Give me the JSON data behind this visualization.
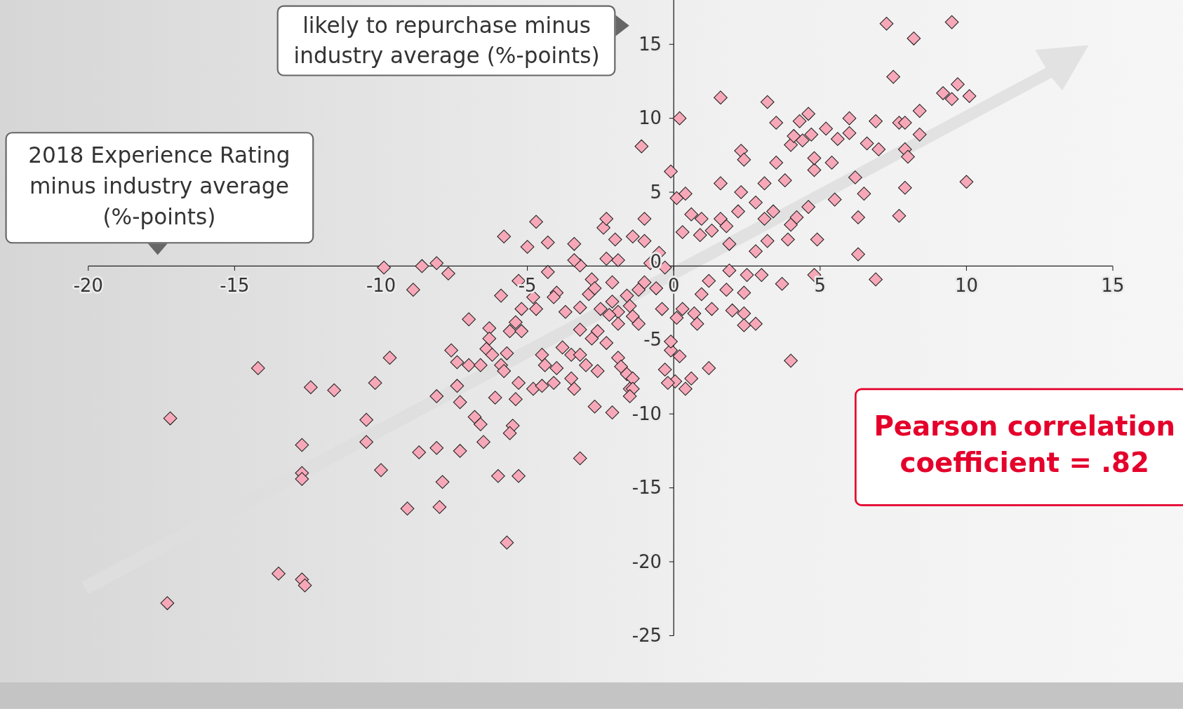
{
  "chart_data": {
    "type": "scatter",
    "xlabel": "2018 Experience Rating minus industry average (%-points)",
    "ylabel": "likely to repurchase minus industry average (%-points)",
    "annotations": [
      "Pearson correlation coefficient = .82"
    ],
    "xlim": [
      -20,
      15
    ],
    "xticks": [
      -20,
      -15,
      -10,
      -5,
      0,
      5,
      10,
      15
    ],
    "ylim": [
      -25,
      18
    ],
    "yticks": [
      -25,
      -20,
      -15,
      -10,
      -5,
      0,
      5,
      10,
      15
    ],
    "grid": false,
    "marker": "diamond",
    "series": [
      {
        "color": "#f7a8b8",
        "x": [
          7.27,
          9.5,
          8.2,
          7.5,
          9.7,
          9.2,
          9.5,
          10.1,
          1.6,
          3.2,
          0.2,
          -1.1,
          3.5,
          4.3,
          4.6,
          5.2,
          6.0,
          6.9,
          7.7,
          8.4,
          7.9,
          5.6,
          6.0,
          6.6,
          7.0,
          7.9,
          8.4,
          8.0,
          7.9,
          10.0,
          7.7,
          6.3,
          6.5,
          6.2,
          5.5,
          5.4,
          4.8,
          4.8,
          4.0,
          4.4,
          4.7,
          4.1,
          3.5,
          3.8,
          3.1,
          2.3,
          2.4,
          2.3,
          1.6,
          -0.1,
          0.4,
          0.1,
          4.6,
          4.0,
          4.2,
          3.4,
          3.1,
          3.2,
          3.9,
          4.9,
          2.8,
          2.2,
          1.6,
          0.95,
          0.6,
          0.3,
          0.9,
          1.3,
          1.8,
          1.9,
          2.8,
          6.3,
          6.9,
          4.8,
          3.7,
          4.0,
          3.0,
          2.5,
          1.9,
          2.4,
          1.8,
          2.0,
          2.4,
          2.4,
          2.8,
          1.2,
          0.95,
          1.3,
          0.7,
          0.8,
          1.2,
          0.6,
          0.4,
          0.2,
          -0.1,
          -0.1,
          -0.3,
          0.05,
          -0.2,
          0.1,
          0.3,
          -0.4,
          -0.6,
          -1.0,
          -1.2,
          -1.6,
          -1.5,
          -1.9,
          -1.4,
          -1.2,
          -1.9,
          -2.2,
          -2.1,
          -2.5,
          -2.6,
          -2.3,
          -2.8,
          -3.2,
          -3.2,
          -2.9,
          -2.8,
          -2.7,
          -2.1,
          -1.9,
          -1.4,
          -1.0,
          -1.0,
          -0.5,
          -0.8,
          -0.3,
          -2.3,
          -2.4,
          -2.3,
          -2.0,
          -3.4,
          -3.2,
          -3.4,
          -4.7,
          -5.0,
          -4.3,
          -5.8,
          -4.3,
          -4.0,
          -4.1,
          -3.7,
          -4.8,
          -5.2,
          -4.7,
          -5.3,
          -5.9,
          -5.4,
          -5.6,
          -5.2,
          -6.3,
          -6.3,
          -7.0,
          -6.4,
          -5.7,
          -6.2,
          -7.6,
          -7.4,
          -7.0,
          -6.6,
          -5.9,
          -5.8,
          -4.5,
          -4.4,
          -4.0,
          -3.8,
          -3.5,
          -3.2,
          -3.0,
          -2.6,
          -3.5,
          -3.4,
          -4.8,
          -4.5,
          -4.1,
          -5.3,
          -6.1,
          -5.4,
          -7.4,
          -7.3,
          -8.1,
          -2.7,
          -2.1,
          -1.9,
          -1.8,
          -1.6,
          -1.4,
          -1.5,
          -1.4,
          -1.5,
          -6.8,
          -6.6,
          -5.5,
          -5.6,
          -6.5,
          -7.3,
          -8.1,
          -8.7,
          -3.2,
          -6.0,
          -5.3,
          -7.9,
          -8.0,
          -9.1,
          -5.7,
          -10.0,
          -10.5,
          -10.5,
          -10.2,
          -9.7,
          -8.9,
          -9.9,
          -8.6,
          -8.1,
          -7.7,
          -11.6,
          -12.4,
          -12.7,
          -12.7,
          -12.7,
          -14.2,
          -17.2,
          -13.5,
          -12.7,
          -12.6,
          -17.3
        ],
        "values": [
          16.4,
          16.5,
          15.4,
          12.8,
          12.3,
          11.7,
          11.3,
          11.5,
          11.4,
          11.1,
          10.0,
          8.1,
          9.7,
          9.8,
          10.3,
          9.3,
          10.0,
          9.8,
          9.7,
          10.5,
          9.7,
          8.6,
          9.0,
          8.3,
          7.9,
          7.9,
          8.9,
          7.4,
          5.3,
          5.7,
          3.4,
          3.3,
          4.9,
          6.0,
          4.5,
          7.0,
          6.5,
          7.3,
          8.2,
          8.5,
          8.9,
          8.8,
          7.0,
          5.8,
          5.6,
          7.8,
          7.2,
          5.0,
          5.6,
          6.4,
          4.9,
          4.6,
          4.0,
          2.8,
          3.3,
          3.7,
          3.2,
          1.7,
          1.8,
          1.8,
          4.3,
          3.7,
          3.2,
          3.2,
          3.5,
          2.3,
          2.1,
          2.4,
          2.7,
          1.5,
          1.0,
          0.8,
          -0.9,
          -0.6,
          -1.2,
          -6.4,
          -0.6,
          -0.6,
          -0.3,
          -1.8,
          -1.6,
          -3.0,
          -3.2,
          -4.0,
          -3.9,
          -1.0,
          -1.9,
          -2.9,
          -3.2,
          -3.9,
          -6.9,
          -7.6,
          -8.3,
          -6.1,
          -5.7,
          -5.1,
          -7.0,
          -7.8,
          -7.9,
          -3.5,
          -2.9,
          -2.9,
          -1.5,
          -1.1,
          -1.6,
          -2.0,
          -2.7,
          -3.1,
          -3.4,
          -3.9,
          -3.9,
          -3.3,
          -2.4,
          -2.9,
          -4.4,
          -5.2,
          -4.9,
          -4.3,
          -2.8,
          -1.9,
          -0.9,
          -1.5,
          -1.1,
          0.4,
          2.0,
          3.2,
          1.7,
          0.9,
          0.2,
          -0.1,
          0.5,
          2.6,
          3.2,
          1.8,
          1.5,
          0.05,
          0.4,
          3.0,
          1.3,
          1.6,
          2.0,
          -0.4,
          -1.8,
          -2.1,
          -3.1,
          -2.1,
          -2.9,
          -2.9,
          -1.0,
          -2.0,
          -3.8,
          -4.4,
          -4.4,
          -4.2,
          -4.9,
          -3.6,
          -5.6,
          -5.9,
          -6.0,
          -5.7,
          -6.5,
          -6.7,
          -6.7,
          -6.7,
          -7.1,
          -6.0,
          -6.7,
          -6.9,
          -5.5,
          -6.0,
          -6.0,
          -6.7,
          -7.1,
          -7.6,
          -8.3,
          -8.3,
          -8.1,
          -7.9,
          -7.9,
          -8.9,
          -9.0,
          -8.1,
          -9.2,
          -8.8,
          -9.5,
          -9.9,
          -6.2,
          -6.8,
          -7.3,
          -7.6,
          -8.3,
          -8.3,
          -8.8,
          -10.2,
          -10.7,
          -10.8,
          -11.3,
          -11.9,
          -12.5,
          -12.3,
          -12.6,
          -13.0,
          -14.2,
          -14.2,
          -14.6,
          -16.3,
          -16.4,
          -18.7,
          -13.8,
          -10.4,
          -11.9,
          -7.9,
          -6.2,
          -1.6,
          -0.1,
          0.0,
          0.2,
          -0.5,
          -8.4,
          -8.2,
          -12.1,
          -14.0,
          -14.4,
          -6.9,
          -10.3,
          -20.8,
          -21.2,
          -21.6,
          -22.8
        ]
      }
    ]
  }
}
